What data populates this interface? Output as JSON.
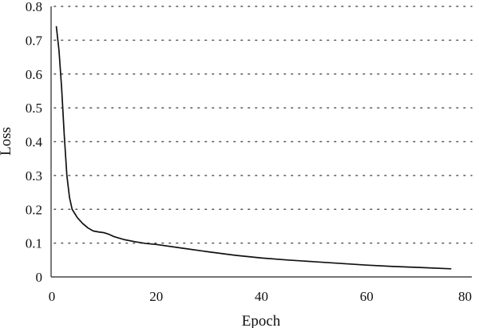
{
  "chart_data": {
    "type": "line",
    "title": "",
    "xlabel": "Epoch",
    "ylabel": "Loss",
    "xlim": [
      0,
      80
    ],
    "ylim": [
      0,
      0.8
    ],
    "x_ticks": [
      0,
      20,
      40,
      60,
      80
    ],
    "y_ticks": [
      0,
      0.1,
      0.2,
      0.3,
      0.4,
      0.5,
      0.6,
      0.7,
      0.8
    ],
    "grid": "horizontal-dotted",
    "legend": "none",
    "line_color": "#111111",
    "series": [
      {
        "x": [
          1,
          1.5,
          2,
          2.5,
          3,
          3.5,
          4,
          5,
          6,
          7,
          8,
          9,
          10,
          11,
          12,
          14,
          16,
          18,
          20,
          25,
          30,
          35,
          40,
          45,
          50,
          55,
          60,
          65,
          70,
          76
        ],
        "values": [
          0.74,
          0.67,
          0.56,
          0.42,
          0.3,
          0.235,
          0.2,
          0.175,
          0.158,
          0.145,
          0.136,
          0.133,
          0.131,
          0.126,
          0.119,
          0.11,
          0.104,
          0.099,
          0.096,
          0.085,
          0.074,
          0.064,
          0.056,
          0.05,
          0.045,
          0.04,
          0.035,
          0.031,
          0.028,
          0.024
        ]
      }
    ]
  }
}
